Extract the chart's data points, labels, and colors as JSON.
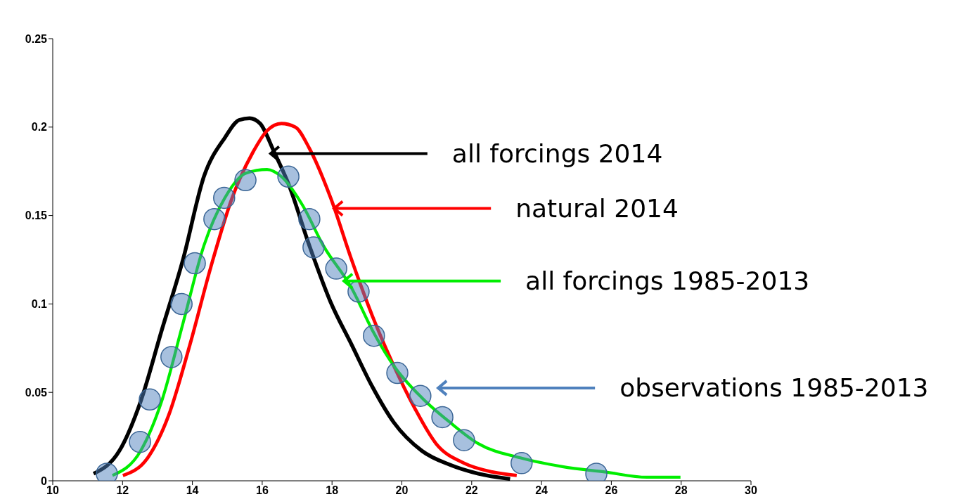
{
  "chart_data": {
    "type": "line",
    "xlim": [
      10,
      30
    ],
    "xticks": [
      10,
      12,
      14,
      16,
      18,
      20,
      22,
      24,
      26,
      28,
      30
    ],
    "ylim": [
      0,
      0.25
    ],
    "yticks": [
      0,
      0.05,
      0.1,
      0.15,
      0.2,
      0.25
    ],
    "grid": false,
    "legend": false,
    "marker": "none",
    "line_style": "solid",
    "series": [
      {
        "color": "#000000",
        "x": [
          11.17,
          11.91,
          12.52,
          13.12,
          13.73,
          14.33,
          14.93,
          15.34,
          15.64,
          15.94,
          16.34,
          16.75,
          17.35,
          17.96,
          18.56,
          19.16,
          19.77,
          20.57,
          21.38,
          22.19,
          23.1
        ],
        "values": [
          0.004,
          0.017,
          0.045,
          0.085,
          0.125,
          0.172,
          0.194,
          0.204,
          0.205,
          0.202,
          0.186,
          0.168,
          0.133,
          0.101,
          0.077,
          0.053,
          0.033,
          0.017,
          0.009,
          0.004,
          0.001
        ]
      },
      {
        "color": "#ff0000",
        "x": [
          12.01,
          12.72,
          13.32,
          13.93,
          14.53,
          15.14,
          15.74,
          16.14,
          16.55,
          16.95,
          17.35,
          17.96,
          18.56,
          19.16,
          19.77,
          20.37,
          20.98,
          21.78,
          22.59,
          23.29
        ],
        "values": [
          0.003,
          0.013,
          0.037,
          0.077,
          0.121,
          0.16,
          0.186,
          0.198,
          0.202,
          0.2,
          0.188,
          0.16,
          0.125,
          0.093,
          0.065,
          0.041,
          0.021,
          0.01,
          0.005,
          0.003
        ]
      },
      {
        "color": "#00ee00",
        "x": [
          11.71,
          12.52,
          13.12,
          13.73,
          14.33,
          14.93,
          15.54,
          16.14,
          16.55,
          17.15,
          17.75,
          18.56,
          19.16,
          19.77,
          20.57,
          21.38,
          22.19,
          23.39,
          24.6,
          25.81,
          27.02,
          27.98
        ],
        "values": [
          0.003,
          0.017,
          0.045,
          0.089,
          0.133,
          0.16,
          0.174,
          0.176,
          0.172,
          0.156,
          0.133,
          0.109,
          0.085,
          0.065,
          0.047,
          0.033,
          0.021,
          0.013,
          0.008,
          0.005,
          0.002,
          0.002
        ]
      },
      {
        "type": "scatter",
        "marker": "circle",
        "color": "#4f81bd",
        "x": [
          11.55,
          12.5,
          12.78,
          13.4,
          13.69,
          14.07,
          14.63,
          14.91,
          15.52,
          16.75,
          17.35,
          17.47,
          18.12,
          18.76,
          19.2,
          19.87,
          20.53,
          21.16,
          21.78,
          23.43,
          25.57
        ],
        "values": [
          0.004,
          0.022,
          0.046,
          0.07,
          0.1,
          0.123,
          0.148,
          0.16,
          0.17,
          0.172,
          0.148,
          0.132,
          0.12,
          0.107,
          0.082,
          0.061,
          0.048,
          0.036,
          0.023,
          0.01,
          0.004
        ]
      }
    ],
    "annotations": [
      {
        "text": "all forcings 2014",
        "x": 16.2,
        "y": 0.185
      },
      {
        "text": "natural 2014",
        "x": 18.02,
        "y": 0.154
      },
      {
        "text": "all forcings 1985-2013",
        "x": 18.3,
        "y": 0.113
      },
      "observations 1985-2013"
    ]
  }
}
